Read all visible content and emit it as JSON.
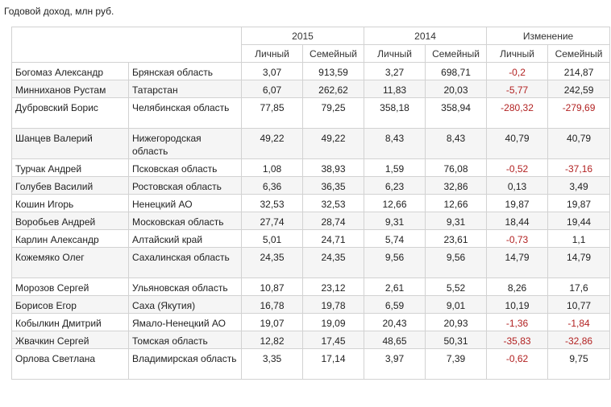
{
  "caption": "Годовой доход, млн руб.",
  "header": {
    "groups": [
      {
        "label": "2015"
      },
      {
        "label": "2014"
      },
      {
        "label": "Изменение"
      }
    ],
    "sub": [
      "Личный",
      "Семейный",
      "Личный",
      "Семейный",
      "Личный",
      "Семейный"
    ]
  },
  "rows": [
    {
      "name": "Богомаз Александр",
      "region": "Брянская область",
      "p2015": "3,07",
      "f2015": "913,59",
      "p2014": "3,27",
      "f2014": "698,71",
      "dp": "-0,2",
      "df": "214,87"
    },
    {
      "name": "Минниханов Рустам",
      "region": "Татарстан",
      "p2015": "6,07",
      "f2015": "262,62",
      "p2014": "11,83",
      "f2014": "20,03",
      "dp": "-5,77",
      "df": "242,59"
    },
    {
      "name": "Дубровский Борис",
      "region": "Челябинская область",
      "p2015": "77,85",
      "f2015": "79,25",
      "p2014": "358,18",
      "f2014": "358,94",
      "dp": "-280,32",
      "df": "-279,69"
    },
    {
      "name": "Шанцев Валерий",
      "region": "Нижегородская область",
      "p2015": "49,22",
      "f2015": "49,22",
      "p2014": "8,43",
      "f2014": "8,43",
      "dp": "40,79",
      "df": "40,79"
    },
    {
      "name": "Турчак Андрей",
      "region": "Псковская область",
      "p2015": "1,08",
      "f2015": "38,93",
      "p2014": "1,59",
      "f2014": "76,08",
      "dp": "-0,52",
      "df": "-37,16"
    },
    {
      "name": "Голубев Василий",
      "region": "Ростовская область",
      "p2015": "6,36",
      "f2015": "36,35",
      "p2014": "6,23",
      "f2014": "32,86",
      "dp": "0,13",
      "df": "3,49"
    },
    {
      "name": "Кошин Игорь",
      "region": "Ненецкий АО",
      "p2015": "32,53",
      "f2015": "32,53",
      "p2014": "12,66",
      "f2014": "12,66",
      "dp": "19,87",
      "df": "19,87"
    },
    {
      "name": "Воробьев Андрей",
      "region": "Московская область",
      "p2015": "27,74",
      "f2015": "28,74",
      "p2014": "9,31",
      "f2014": "9,31",
      "dp": "18,44",
      "df": "19,44"
    },
    {
      "name": "Карлин Александр",
      "region": "Алтайский край",
      "p2015": "5,01",
      "f2015": "24,71",
      "p2014": "5,74",
      "f2014": "23,61",
      "dp": "-0,73",
      "df": "1,1"
    },
    {
      "name": "Кожемяко Олег",
      "region": "Сахалинская область",
      "p2015": "24,35",
      "f2015": "24,35",
      "p2014": "9,56",
      "f2014": "9,56",
      "dp": "14,79",
      "df": "14,79"
    },
    {
      "name": "Морозов Сергей",
      "region": "Ульяновская область",
      "p2015": "10,87",
      "f2015": "23,12",
      "p2014": "2,61",
      "f2014": "5,52",
      "dp": "8,26",
      "df": "17,6"
    },
    {
      "name": "Борисов Егор",
      "region": "Саха (Якутия)",
      "p2015": "16,78",
      "f2015": "19,78",
      "p2014": "6,59",
      "f2014": "9,01",
      "dp": "10,19",
      "df": "10,77"
    },
    {
      "name": "Кобылкин Дмитрий",
      "region": "Ямало-Ненецкий АО",
      "p2015": "19,07",
      "f2015": "19,09",
      "p2014": "20,43",
      "f2014": "20,93",
      "dp": "-1,36",
      "df": "-1,84"
    },
    {
      "name": "Жвачкин Сергей",
      "region": "Томская область",
      "p2015": "12,82",
      "f2015": "17,45",
      "p2014": "48,65",
      "f2014": "50,31",
      "dp": "-35,83",
      "df": "-32,86"
    },
    {
      "name": "Орлова Светлана",
      "region": "Владимирская область",
      "p2015": "3,35",
      "f2015": "17,14",
      "p2014": "3,97",
      "f2014": "7,39",
      "dp": "-0,62",
      "df": "9,75"
    }
  ],
  "colors": {
    "negative": "#b22222",
    "border": "#d2d2d2",
    "zebra": "#f5f5f5"
  }
}
